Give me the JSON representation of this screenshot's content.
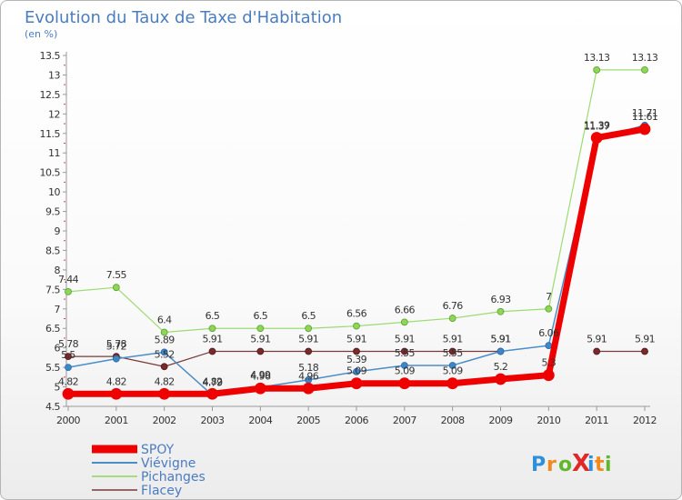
{
  "chart_data": {
    "type": "line",
    "title": "Evolution du Taux de Taxe d'Habitation",
    "subtitle": "(en %)",
    "xlabel": "",
    "ylabel": "",
    "ylim": [
      4.5,
      13.5
    ],
    "yticks": [
      "4.5",
      "5",
      "5.5",
      "6",
      "6.5",
      "7",
      "7.5",
      "8",
      "8.5",
      "9",
      "9.5",
      "10",
      "10.5",
      "11",
      "11.5",
      "12",
      "12.5",
      "13",
      "13.5"
    ],
    "categories": [
      "2000",
      "2001",
      "2002",
      "2003",
      "2004",
      "2005",
      "2006",
      "2007",
      "2008",
      "2009",
      "2010",
      "2011",
      "2012"
    ],
    "grid": false,
    "legend_position": "bottom-left",
    "series": [
      {
        "name": "SPOY",
        "color": "#ee0000",
        "values": [
          4.82,
          4.82,
          4.82,
          4.82,
          4.96,
          4.96,
          5.09,
          5.09,
          5.09,
          5.2,
          5.3,
          11.39,
          11.61
        ],
        "labels": [
          "4.82",
          "4.82",
          "4.82",
          "4.82",
          "4.96",
          "4.96",
          "5.09",
          "5.09",
          "5.09",
          "5.2",
          "5.3",
          "11.39",
          "11.61"
        ]
      },
      {
        "name": "Viévigne",
        "color": "#4a8ec8",
        "values": [
          5.5,
          5.72,
          5.89,
          4.79,
          4.99,
          5.18,
          5.39,
          5.55,
          5.55,
          5.91,
          6.06,
          11.37,
          11.71
        ],
        "labels": [
          "5.5",
          "5.72",
          "5.89",
          "4.79",
          "4.99",
          "5.18",
          "5.39",
          "5.55",
          "5.55",
          "5.91",
          "6.06",
          "11.37",
          "11.71"
        ]
      },
      {
        "name": "Pichanges",
        "color": "#8ed65a",
        "values": [
          7.44,
          7.55,
          6.4,
          6.5,
          6.5,
          6.5,
          6.56,
          6.66,
          6.76,
          6.93,
          7,
          13.13,
          13.13
        ],
        "labels": [
          "7.44",
          "7.55",
          "6.4",
          "6.5",
          "6.5",
          "6.5",
          "6.56",
          "6.66",
          "6.76",
          "6.93",
          "7",
          "13.13",
          "13.13"
        ]
      },
      {
        "name": "Flacey",
        "color": "#7a3a3a",
        "values": [
          5.78,
          5.78,
          5.52,
          5.91,
          5.91,
          5.91,
          5.91,
          5.91,
          5.91,
          5.91,
          null,
          5.91,
          5.91
        ],
        "labels": [
          "5.78",
          "5.78",
          "5.52",
          "5.91",
          "5.91",
          "5.91",
          "5.91",
          "5.91",
          "5.91",
          "5.91",
          "",
          "5.91",
          "5.91"
        ]
      }
    ]
  },
  "logo": {
    "text": "ProXiti",
    "colors": [
      "#2f8fd8",
      "#f08a1c",
      "#62b82c",
      "#e02828"
    ]
  }
}
